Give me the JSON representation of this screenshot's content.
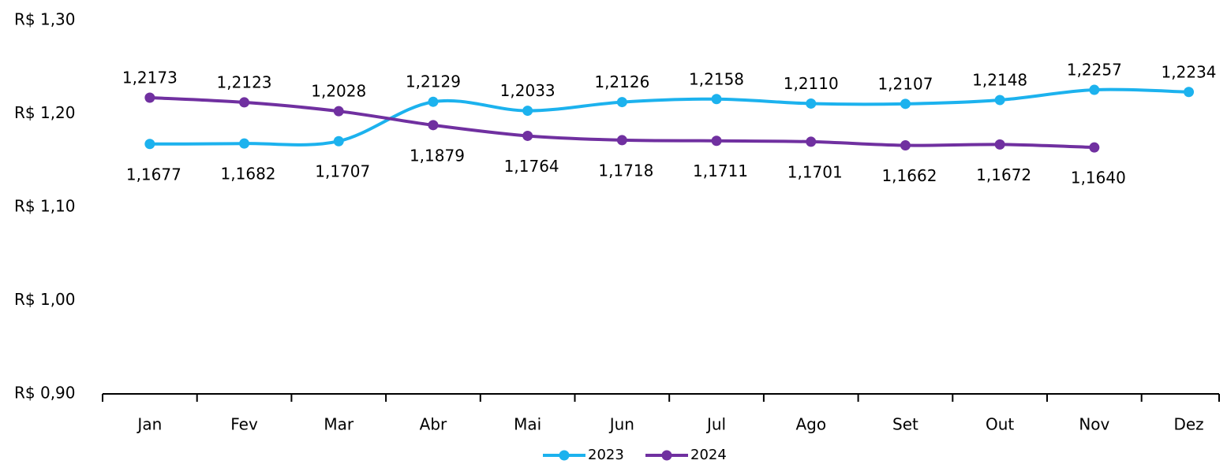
{
  "chart_data": {
    "type": "line",
    "categories": [
      "Jan",
      "Fev",
      "Mar",
      "Abr",
      "Mai",
      "Jun",
      "Jul",
      "Ago",
      "Set",
      "Out",
      "Nov",
      "Dez"
    ],
    "series": [
      {
        "name": "2023",
        "color": "#1cb2ee",
        "values": [
          1.1677,
          1.1682,
          1.1707,
          1.2129,
          1.2033,
          1.2126,
          1.2158,
          1.211,
          1.2107,
          1.2148,
          1.2257,
          1.2234
        ],
        "value_labels": [
          "1,1677",
          "1,1682",
          "1,1707",
          "1,2129",
          "1,2033",
          "1,2126",
          "1,2158",
          "1,2110",
          "1,2107",
          "1,2148",
          "1,2257",
          "1,2234"
        ]
      },
      {
        "name": "2024",
        "color": "#7030a0",
        "values": [
          1.2173,
          1.2123,
          1.2028,
          1.1879,
          1.1764,
          1.1718,
          1.1711,
          1.1701,
          1.1662,
          1.1672,
          1.164,
          null
        ],
        "value_labels": [
          "1,2173",
          "1,2123",
          "1,2028",
          "1,1879",
          "1,1764",
          "1,1718",
          "1,1711",
          "1,1701",
          "1,1662",
          "1,1672",
          "1,1640",
          null
        ]
      }
    ],
    "ylim": [
      0.9,
      1.3
    ],
    "yticks": [
      {
        "value": 0.9,
        "label": "R$ 0,90"
      },
      {
        "value": 1.0,
        "label": "R$ 1,00"
      },
      {
        "value": 1.1,
        "label": "R$ 1,10"
      },
      {
        "value": 1.2,
        "label": "R$ 1,20"
      },
      {
        "value": 1.3,
        "label": "R$ 1,30"
      }
    ],
    "legend": "bottom"
  }
}
